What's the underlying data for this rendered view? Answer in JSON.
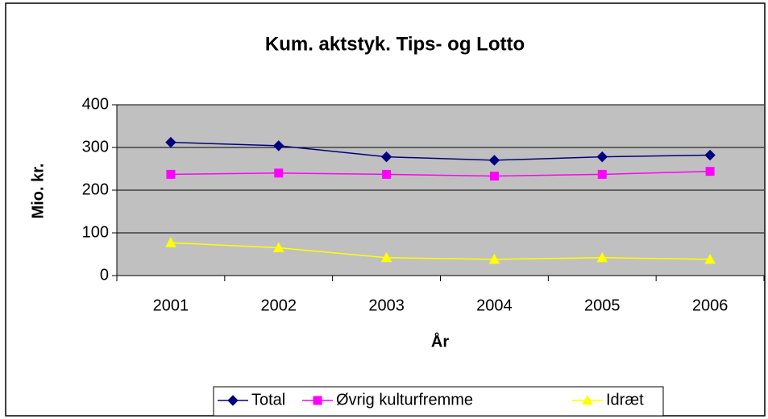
{
  "chart_data": {
    "type": "line",
    "title": "Kum. aktstyk. Tips- og Lotto",
    "x_label": "År",
    "y_label": "Mio. kr.",
    "categories": [
      "2001",
      "2002",
      "2003",
      "2004",
      "2005",
      "2006"
    ],
    "series": [
      {
        "name": "Total",
        "color": "#000080",
        "marker": "diamond",
        "values": [
          312,
          304,
          278,
          270,
          278,
          282
        ]
      },
      {
        "name": "Øvrig kulturfremme",
        "color": "#ff00ff",
        "marker": "square",
        "values": [
          237,
          240,
          237,
          233,
          237,
          244
        ]
      },
      {
        "name": "Idræt",
        "color": "#ffff00",
        "marker": "triangle",
        "values": [
          77,
          65,
          42,
          38,
          42,
          38
        ]
      }
    ],
    "ylim": [
      0,
      400
    ],
    "yticks": [
      0,
      100,
      200,
      300,
      400
    ],
    "grid": true,
    "legend": "bottom"
  }
}
